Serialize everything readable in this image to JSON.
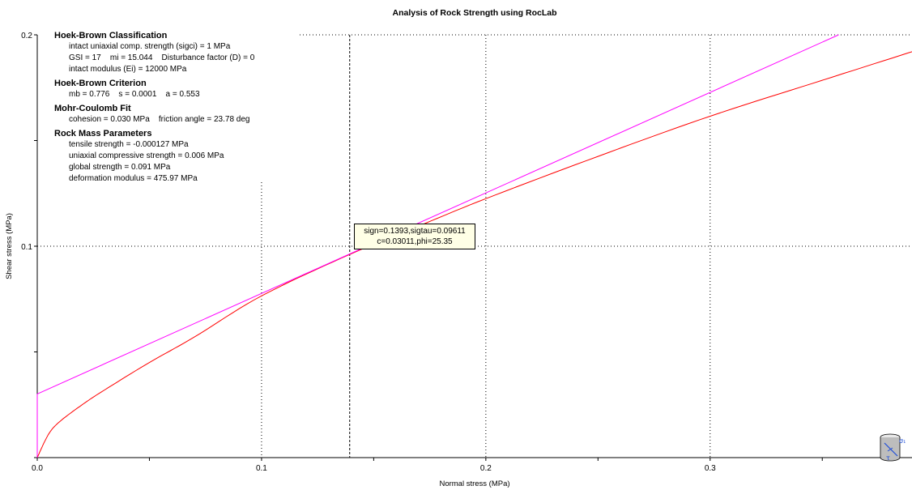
{
  "chart_data": {
    "type": "line",
    "title": "Analysis of Rock Strength using RocLab",
    "xlabel": "Normal stress (MPa)",
    "ylabel": "Shear stress (MPa)",
    "xlim": [
      0,
      0.39
    ],
    "ylim": [
      0,
      0.2
    ],
    "x_ticks": [
      "0.0",
      "0.1",
      "0.2",
      "0.3"
    ],
    "x_tick_values": [
      0,
      0.1,
      0.2,
      0.3
    ],
    "y_ticks": [
      "0.1",
      "0.2"
    ],
    "y_tick_values": [
      0.1,
      0.2
    ],
    "grid": "dotted",
    "crosshair_x": 0.1393,
    "series": [
      {
        "color": "#ff0000",
        "x": [
          0,
          0.005,
          0.01,
          0.02,
          0.03,
          0.05,
          0.07,
          0.1,
          0.1393,
          0.17,
          0.2,
          0.25,
          0.3,
          0.35,
          0.39
        ],
        "y": [
          0,
          0.011,
          0.017,
          0.025,
          0.032,
          0.045,
          0.057,
          0.0765,
          0.0961,
          0.1095,
          0.1225,
          0.1425,
          0.1615,
          0.1785,
          0.192
        ]
      },
      {
        "color": "#ff00ff",
        "x": [
          0,
          0.3573
        ],
        "y": [
          0.03011,
          0.2
        ]
      }
    ]
  },
  "info_panel": {
    "sections": [
      {
        "heading": "Hoek-Brown Classification",
        "lines": [
          "intact uniaxial comp. strength (sigci) = 1 MPa",
          "GSI = 17    mi = 15.044    Disturbance factor (D) = 0",
          "intact modulus (Ei) = 12000 MPa"
        ]
      },
      {
        "heading": "Hoek-Brown Criterion",
        "lines": [
          "mb = 0.776    s = 0.0001    a = 0.553"
        ]
      },
      {
        "heading": "Mohr-Coulomb Fit",
        "lines": [
          "cohesion = 0.030 MPa    friction angle = 23.78 deg"
        ]
      },
      {
        "heading": "Rock Mass Parameters",
        "lines": [
          "tensile strength = -0.000127 MPa",
          "uniaxial compressive strength = 0.006 MPa",
          "global strength = 0.091 MPa",
          "deformation modulus = 475.97 MPa"
        ]
      }
    ]
  },
  "tooltip": {
    "line1": "sign=0.1393,sigtau=0.09611",
    "line2": "c=0.03011,phi=25.35"
  },
  "corner_icon": {
    "icon": "stress-cylinder-icon",
    "labels": [
      "σ₁",
      "τ"
    ]
  }
}
